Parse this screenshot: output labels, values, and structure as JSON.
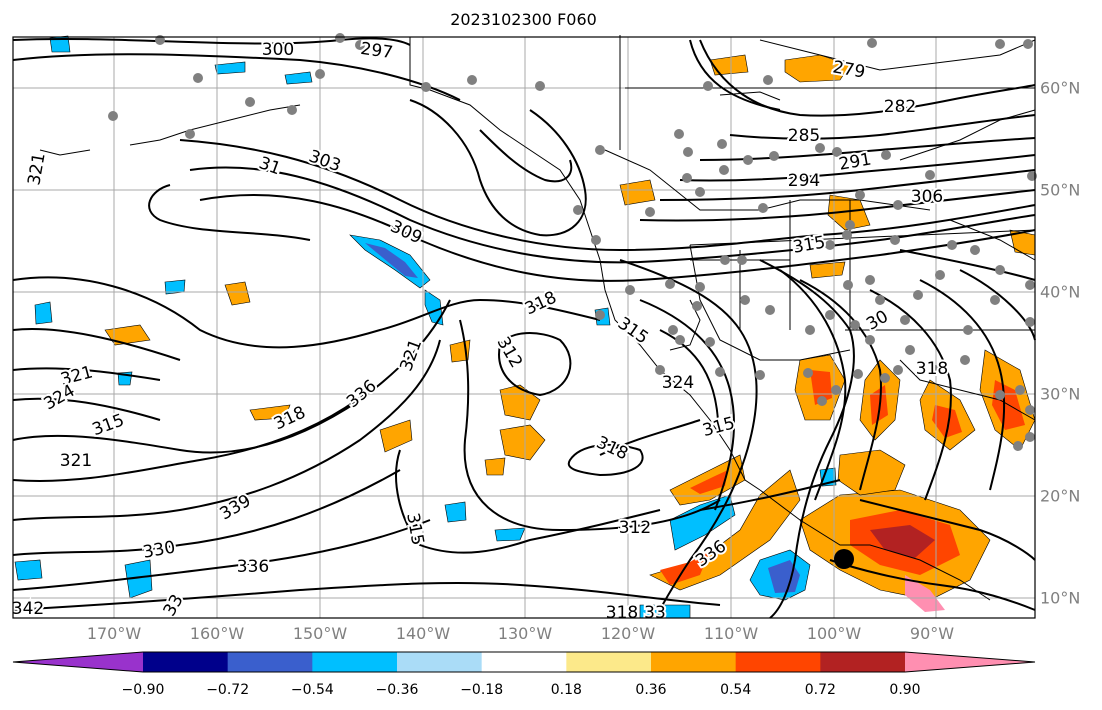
{
  "title": "2023102300 F060",
  "lon_labels": [
    "170°W",
    "160°W",
    "150°W",
    "140°W",
    "130°W",
    "120°W",
    "110°W",
    "100°W",
    "90°W"
  ],
  "lat_labels": [
    "60°N",
    "50°N",
    "40°N",
    "30°N",
    "20°N",
    "10°N"
  ],
  "contour_labels": [
    "300",
    "297",
    "279",
    "282",
    "285",
    "291",
    "294",
    "306",
    "303",
    "31",
    "309",
    "315",
    "318",
    "315",
    "312",
    "324",
    "321",
    "324",
    "315",
    "321",
    "318",
    "321",
    "336",
    "318",
    "315",
    "312",
    "330",
    "315",
    "30",
    "318",
    "321",
    "336",
    "339",
    "336",
    "33",
    "342",
    "318",
    "33"
  ],
  "colorbar": {
    "ticks": [
      "−0.90",
      "−0.72",
      "−0.54",
      "−0.36",
      "−0.18",
      "0.18",
      "0.36",
      "0.54",
      "0.72",
      "0.90"
    ],
    "colors": [
      "#9932cc",
      "#00008b",
      "#3a5fcd",
      "#00bfff",
      "#aadcf7",
      "#ffffff",
      "#fce98a",
      "#ffa500",
      "#ff4500",
      "#b22222",
      "#ff8fb1"
    ],
    "extend": "both"
  },
  "colors": {
    "grid": "#a9a9a9",
    "coast": "#000000",
    "contour": "#000000",
    "label_gray": "#808080"
  }
}
